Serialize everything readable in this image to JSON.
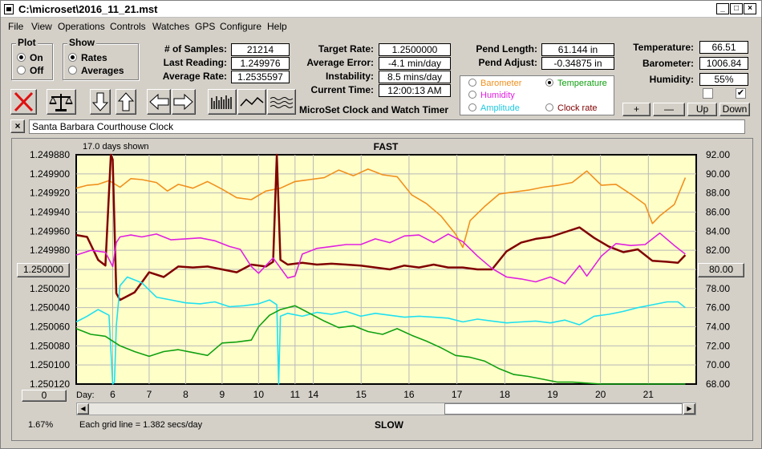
{
  "window": {
    "title": "C:\\microset\\2016_11_21.mst"
  },
  "menu": [
    "File",
    "View",
    "Operations",
    "Controls",
    "Watches",
    "GPS",
    "Configure",
    "Help"
  ],
  "plot": {
    "label": "Plot",
    "on": "On",
    "off": "Off",
    "selected": "On"
  },
  "show": {
    "label": "Show",
    "rates": "Rates",
    "averages": "Averages",
    "selected": "Rates"
  },
  "stats": {
    "samples_label": "# of Samples:",
    "samples": "21214",
    "last_label": "Last Reading:",
    "last": "1.249976",
    "avg_label": "Average Rate:",
    "avg": "1.2535597",
    "target_label": "Target Rate:",
    "target": "1.2500000",
    "error_label": "Average Error:",
    "error": "-4.1 min/day",
    "instab_label": "Instability:",
    "instab": "8.5 mins/day",
    "time_label": "Current Time:",
    "time": "12:00:13 AM",
    "pend_label": "Pend Length:",
    "pend": "61.144 in",
    "adjust_label": "Pend Adjust:",
    "adjust": "-0.34875 in",
    "temp_label": "Temperature:",
    "temp": "66.51",
    "baro_label": "Barometer:",
    "baro": "1006.84",
    "hum_label": "Humidity:",
    "hum": "55%"
  },
  "app_title": "MicroSet Clock and Watch Timer",
  "sensor_options": {
    "barometer": "Barometer",
    "temperature": "Temperature",
    "humidity": "Humidity",
    "amplitude": "Amplitude",
    "clock_rate": "Clock rate",
    "selected": "Temperature"
  },
  "adjust_buttons": {
    "plus": "+",
    "minus": "—",
    "up": "Up",
    "down": "Down"
  },
  "checkboxes": {
    "left_checked": false,
    "right_checked": true,
    "check_glyph": "✔"
  },
  "clock_name": "Santa Barbara Courthouse Clock",
  "colors": {
    "chart_bg": "#ffffc8",
    "barometer": "#f0901e",
    "clock_rate": "#800000",
    "humidity": "#e020e0",
    "amplitude": "#20e0f0",
    "temperature": "#10a010"
  },
  "chart_data": {
    "type": "line",
    "top_label": "FAST",
    "bottom_label": "SLOW",
    "days_shown": "17.0 days shown",
    "grid_note": "Each grid line = 1.382 secs/day",
    "percent": "1.67%",
    "left_button": "1.250000",
    "right_button": "80.00",
    "zero_button": "0",
    "day_label": "Day:",
    "day_ticks": [
      "6",
      "7",
      "8",
      "9",
      "10",
      "11",
      "14",
      "15",
      "16",
      "17",
      "18",
      "19",
      "20",
      "21"
    ],
    "left_ticks": [
      "1.249880",
      "1.249900",
      "1.249920",
      "1.249940",
      "1.249960",
      "1.249980",
      "1.250000",
      "1.250020",
      "1.250040",
      "1.250060",
      "1.250080",
      "1.250100",
      "1.250120"
    ],
    "right_ticks": [
      "92.00",
      "90.00",
      "88.00",
      "86.00",
      "84.00",
      "82.00",
      "80.00",
      "78.00",
      "76.00",
      "74.00",
      "72.00",
      "70.00",
      "68.00"
    ],
    "x_range": [
      5,
      22
    ],
    "left_range": [
      1.24988,
      1.25012
    ],
    "right_range": [
      68,
      92
    ],
    "series": [
      {
        "key": "barometer",
        "x": [
          5.0,
          5.3,
          5.6,
          5.9,
          6.2,
          6.5,
          6.8,
          7.2,
          7.5,
          7.8,
          8.2,
          8.6,
          9.0,
          9.4,
          9.8,
          10.2,
          10.6,
          11.0,
          11.4,
          11.8,
          12.2,
          12.6,
          13.0,
          13.4,
          13.8,
          14.2,
          14.6,
          15.0,
          15.4,
          15.6,
          15.8,
          16.2,
          16.6,
          17.0,
          17.4,
          17.8,
          18.2,
          18.6,
          19.0,
          19.4,
          19.8,
          20.2,
          20.6,
          20.8,
          21.0,
          21.4,
          21.7
        ],
        "y": [
          88.5,
          88.8,
          88.9,
          89.3,
          88.6,
          89.5,
          89.4,
          89.1,
          88.2,
          88.9,
          88.5,
          89.2,
          88.4,
          87.5,
          87.3,
          88.2,
          88.5,
          89.2,
          89.4,
          89.6,
          90.4,
          89.8,
          90.5,
          89.9,
          89.7,
          87.8,
          86.9,
          85.6,
          83.7,
          82.3,
          85.1,
          86.6,
          87.9,
          88.1,
          88.3,
          88.6,
          88.8,
          89.1,
          90.3,
          88.8,
          88.9,
          87.9,
          86.8,
          84.8,
          85.6,
          86.8,
          89.6
        ]
      },
      {
        "key": "clock_rate",
        "x": [
          5.0,
          5.3,
          5.6,
          5.8,
          5.95,
          6.0,
          6.1,
          6.2,
          6.4,
          6.6,
          7.0,
          7.4,
          7.8,
          8.2,
          8.6,
          9.0,
          9.4,
          9.8,
          10.2,
          10.4,
          10.5,
          10.6,
          10.8,
          11.2,
          11.6,
          12.0,
          12.4,
          12.8,
          13.2,
          13.6,
          14.0,
          14.4,
          14.8,
          15.2,
          15.6,
          16.0,
          16.4,
          16.8,
          17.2,
          17.6,
          18.0,
          18.4,
          18.8,
          19.2,
          19.6,
          20.0,
          20.4,
          20.8,
          21.2,
          21.5,
          21.7
        ],
        "y": [
          1.249964,
          1.249966,
          1.24999,
          1.249996,
          1.24988,
          1.249885,
          1.250025,
          1.250032,
          1.250028,
          1.250024,
          1.250003,
          1.250008,
          1.249997,
          1.249998,
          1.249997,
          1.25,
          1.250003,
          1.249995,
          1.249997,
          1.249992,
          1.24988,
          1.24999,
          1.249995,
          1.249993,
          1.249995,
          1.249994,
          1.249995,
          1.249996,
          1.249998,
          1.25,
          1.249996,
          1.249998,
          1.249995,
          1.249998,
          1.249998,
          1.25,
          1.25,
          1.249981,
          1.249972,
          1.249968,
          1.249966,
          1.249961,
          1.249956,
          1.249967,
          1.249976,
          1.249982,
          1.249979,
          1.249991,
          1.249992,
          1.249993,
          1.249985
        ]
      },
      {
        "key": "humidity",
        "x": [
          5.0,
          5.4,
          5.8,
          6.0,
          6.1,
          6.2,
          6.5,
          6.8,
          7.2,
          7.6,
          8.0,
          8.4,
          8.8,
          9.2,
          9.5,
          9.8,
          10.0,
          10.4,
          10.8,
          11.0,
          11.2,
          11.6,
          12.0,
          12.4,
          12.8,
          13.2,
          13.6,
          14.0,
          14.4,
          14.8,
          15.2,
          15.6,
          16.0,
          16.4,
          16.8,
          17.2,
          17.6,
          18.0,
          18.4,
          18.8,
          19.0,
          19.4,
          19.8,
          20.2,
          20.6,
          21.0,
          21.4,
          21.7
        ],
        "y": [
          81.5,
          82.0,
          81.8,
          80.3,
          82.8,
          83.4,
          83.6,
          83.4,
          83.7,
          83.1,
          83.2,
          83.3,
          83.0,
          82.4,
          82.1,
          80.3,
          79.6,
          81.2,
          79.1,
          79.3,
          81.6,
          82.2,
          82.4,
          82.6,
          82.6,
          83.2,
          82.8,
          83.5,
          83.6,
          82.8,
          83.7,
          82.9,
          81.4,
          80.1,
          79.2,
          79.0,
          78.7,
          79.2,
          78.5,
          80.4,
          79.3,
          81.4,
          82.7,
          82.5,
          82.6,
          83.8,
          82.5,
          81.6
        ]
      },
      {
        "key": "amplitude",
        "x": [
          5.0,
          5.3,
          5.6,
          5.9,
          6.0,
          6.05,
          6.1,
          6.2,
          6.4,
          6.6,
          6.8,
          7.2,
          7.6,
          8.0,
          8.4,
          8.8,
          9.2,
          9.6,
          10.0,
          10.3,
          10.5,
          10.55,
          10.6,
          10.8,
          11.2,
          11.6,
          12.0,
          12.4,
          12.8,
          13.2,
          13.6,
          14.0,
          14.4,
          14.8,
          15.2,
          15.6,
          16.0,
          16.4,
          16.8,
          17.2,
          17.6,
          18.0,
          18.4,
          18.8,
          19.2,
          19.6,
          20.0,
          20.4,
          20.8,
          21.2,
          21.5,
          21.7
        ],
        "y": [
          74.5,
          75.1,
          75.8,
          75.2,
          68.0,
          68.2,
          74.1,
          78.3,
          79.2,
          78.9,
          78.6,
          77.1,
          76.8,
          76.5,
          76.4,
          76.6,
          76.1,
          76.2,
          76.4,
          76.8,
          76.3,
          68.0,
          75.1,
          75.4,
          75.1,
          75.5,
          75.3,
          75.6,
          75.1,
          75.4,
          75.2,
          75.0,
          75.1,
          75.0,
          74.9,
          74.5,
          74.8,
          74.6,
          74.4,
          74.5,
          74.6,
          74.4,
          74.7,
          74.2,
          75.1,
          75.3,
          75.6,
          76.0,
          76.3,
          76.6,
          76.6,
          76.0
        ]
      },
      {
        "key": "temperature",
        "x": [
          5.0,
          5.4,
          5.8,
          6.0,
          6.2,
          6.6,
          7.0,
          7.4,
          7.8,
          8.2,
          8.6,
          9.0,
          9.4,
          9.8,
          10.0,
          10.3,
          10.6,
          11.0,
          11.4,
          11.8,
          12.2,
          12.6,
          13.0,
          13.4,
          13.8,
          14.2,
          14.6,
          15.0,
          15.4,
          15.8,
          16.2,
          16.6,
          17.0,
          17.4,
          17.8,
          18.2,
          18.6,
          19.0,
          19.4,
          19.8,
          20.2,
          20.6,
          21.0,
          21.4,
          21.7
        ],
        "y": [
          73.8,
          73.2,
          73.0,
          72.5,
          72.0,
          71.4,
          70.9,
          71.4,
          71.6,
          71.3,
          71.0,
          72.3,
          72.4,
          72.6,
          74.0,
          75.2,
          75.8,
          76.2,
          75.4,
          74.6,
          73.9,
          74.1,
          73.5,
          73.2,
          73.8,
          73.1,
          72.5,
          71.8,
          71.0,
          70.8,
          70.4,
          69.6,
          69.0,
          68.8,
          68.5,
          68.2,
          68.2,
          68.1,
          68.0,
          68.0,
          68.0,
          68.0,
          68.0,
          68.0,
          68.0
        ]
      }
    ]
  }
}
